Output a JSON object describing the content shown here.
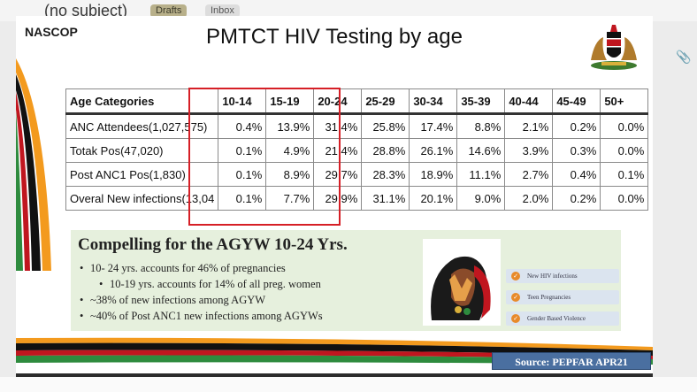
{
  "email": {
    "subject": "(no subject)",
    "chips": [
      "Drafts",
      "Inbox"
    ]
  },
  "slide": {
    "logo_text": "NASCOP",
    "title": "PMTCT  HIV Testing by age",
    "table": {
      "header_category": "Age Categories",
      "age_groups": [
        "10-14",
        "15-19",
        "20-24",
        "25-29",
        "30-34",
        "35-39",
        "40-44",
        "45-49",
        "50+"
      ],
      "rows": [
        {
          "label": "ANC Attendees(1,027,575)",
          "values": [
            "0.4%",
            "13.9%",
            "31.4%",
            "25.8%",
            "17.4%",
            "8.8%",
            "2.1%",
            "0.2%",
            "0.0%"
          ]
        },
        {
          "label": "Totak Pos(47,020)",
          "values": [
            "0.1%",
            "4.9%",
            "21.4%",
            "28.8%",
            "26.1%",
            "14.6%",
            "3.9%",
            "0.3%",
            "0.0%"
          ]
        },
        {
          "label": "Post ANC1 Pos(1,830)",
          "values": [
            "0.1%",
            "8.9%",
            "29.7%",
            "28.3%",
            "18.9%",
            "11.1%",
            "2.7%",
            "0.4%",
            "0.1%"
          ]
        },
        {
          "label": "Overal New infections(13,04",
          "values": [
            "0.1%",
            "7.7%",
            "29.9%",
            "31.1%",
            "20.1%",
            "9.0%",
            "2.0%",
            "0.2%",
            "0.0%"
          ]
        }
      ]
    },
    "panel": {
      "heading": "Compelling for the AGYW 10-24 Yrs.",
      "bullets": [
        {
          "text": "10- 24 yrs. accounts for 46% of pregnancies",
          "level": 0
        },
        {
          "text": "10-19 yrs. accounts for 14% of all preg. women",
          "level": 1
        },
        {
          "text": "~38% of new infections among AGYW",
          "level": 0
        },
        {
          "text": "~40% of Post ANC1 new infections  among AGYWs",
          "level": 0
        }
      ],
      "legend": [
        "New HIV infections",
        "Teen Pregnancies",
        "Gender Based  Violence"
      ]
    },
    "source": "Source: PEPFAR APR21"
  }
}
